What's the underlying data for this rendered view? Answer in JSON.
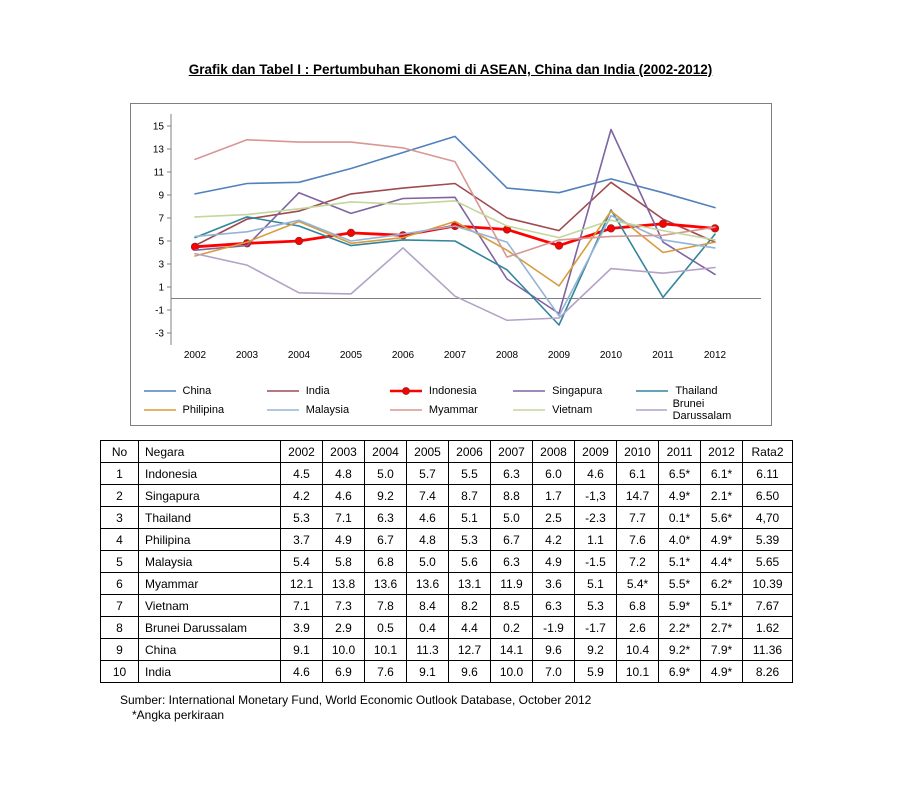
{
  "page": {
    "title": "Grafik dan Tabel I : Pertumbuhan Ekonomi di ASEAN, China dan India (2002-2012)",
    "source": "Sumber: International Monetary Fund, World Economic Outlook Database, October 2012",
    "footnote": "*Angka perkiraan"
  },
  "chart_data": {
    "type": "line",
    "x": [
      2002,
      2003,
      2004,
      2005,
      2006,
      2007,
      2008,
      2009,
      2010,
      2011,
      2012
    ],
    "ylim": [
      -3,
      15
    ],
    "yticks": [
      15,
      13,
      11,
      9,
      7,
      5,
      3,
      1,
      -1,
      -3
    ],
    "grid": false,
    "legend_position": "bottom",
    "legend_rows": [
      [
        "China",
        "India",
        "Indonesia",
        "Singapura",
        "Thailand"
      ],
      [
        "Philipina",
        "Malaysia",
        "Myammar",
        "Vietnam",
        "Brunei Darussalam"
      ]
    ],
    "series": [
      {
        "name": "China",
        "color": "#4F81BD",
        "width": 1.6,
        "values": [
          9.1,
          10.0,
          10.1,
          11.3,
          12.7,
          14.1,
          9.6,
          9.2,
          10.4,
          9.2,
          7.9
        ]
      },
      {
        "name": "India",
        "color": "#9E4B50",
        "width": 1.6,
        "values": [
          4.6,
          6.9,
          7.6,
          9.1,
          9.6,
          10.0,
          7.0,
          5.9,
          10.1,
          6.9,
          4.9
        ]
      },
      {
        "name": "Indonesia",
        "color": "#FF0000",
        "width": 2.8,
        "marker": true,
        "values": [
          4.5,
          4.8,
          5.0,
          5.7,
          5.5,
          6.3,
          6.0,
          4.6,
          6.1,
          6.5,
          6.1
        ]
      },
      {
        "name": "Singapura",
        "color": "#8064A2",
        "width": 1.6,
        "values": [
          4.2,
          4.6,
          9.2,
          7.4,
          8.7,
          8.8,
          1.7,
          -1.3,
          14.7,
          4.9,
          2.1
        ]
      },
      {
        "name": "Thailand",
        "color": "#31859C",
        "width": 1.6,
        "values": [
          5.3,
          7.1,
          6.3,
          4.6,
          5.1,
          5.0,
          2.5,
          -2.3,
          7.7,
          0.1,
          5.6
        ]
      },
      {
        "name": "Philipina",
        "color": "#D89C3C",
        "width": 1.6,
        "values": [
          3.7,
          4.9,
          6.7,
          4.8,
          5.3,
          6.7,
          4.2,
          1.1,
          7.6,
          4.0,
          4.9
        ]
      },
      {
        "name": "Malaysia",
        "color": "#95B3D7",
        "width": 1.6,
        "values": [
          5.4,
          5.8,
          6.8,
          5.0,
          5.6,
          6.3,
          4.9,
          -1.5,
          7.2,
          5.1,
          4.4
        ]
      },
      {
        "name": "Myammar",
        "color": "#D99694",
        "width": 1.6,
        "values": [
          12.1,
          13.8,
          13.6,
          13.6,
          13.1,
          11.9,
          3.6,
          5.1,
          5.4,
          5.5,
          6.2
        ]
      },
      {
        "name": "Vietnam",
        "color": "#C3D69B",
        "width": 1.6,
        "values": [
          7.1,
          7.3,
          7.8,
          8.4,
          8.2,
          8.5,
          6.3,
          5.3,
          6.8,
          5.9,
          5.1
        ]
      },
      {
        "name": "Brunei Darussalam",
        "color": "#B3A2C7",
        "width": 1.6,
        "values": [
          3.9,
          2.9,
          0.5,
          0.4,
          4.4,
          0.2,
          -1.9,
          -1.7,
          2.6,
          2.2,
          2.7
        ]
      }
    ]
  },
  "table": {
    "headers": [
      "No",
      "Negara",
      "2002",
      "2003",
      "2004",
      "2005",
      "2006",
      "2007",
      "2008",
      "2009",
      "2010",
      "2011",
      "2012",
      "Rata2"
    ],
    "rows": [
      {
        "no": "1",
        "negara": "Indonesia",
        "values": [
          "4.5",
          "4.8",
          "5.0",
          "5.7",
          "5.5",
          "6.3",
          "6.0",
          "4.6",
          "6.1",
          "6.5*",
          "6.1*",
          "6.11"
        ]
      },
      {
        "no": "2",
        "negara": "Singapura",
        "values": [
          "4.2",
          "4.6",
          "9.2",
          "7.4",
          "8.7",
          "8.8",
          "1.7",
          "-1,3",
          "14.7",
          "4.9*",
          "2.1*",
          "6.50"
        ]
      },
      {
        "no": "3",
        "negara": "Thailand",
        "values": [
          "5.3",
          "7.1",
          "6.3",
          "4.6",
          "5.1",
          "5.0",
          "2.5",
          "-2.3",
          "7.7",
          "0.1*",
          "5.6*",
          "4,70"
        ]
      },
      {
        "no": "4",
        "negara": "Philipina",
        "values": [
          "3.7",
          "4.9",
          "6.7",
          "4.8",
          "5.3",
          "6.7",
          "4.2",
          "1.1",
          "7.6",
          "4.0*",
          "4.9*",
          "5.39"
        ]
      },
      {
        "no": "5",
        "negara": "Malaysia",
        "values": [
          "5.4",
          "5.8",
          "6.8",
          "5.0",
          "5.6",
          "6.3",
          "4.9",
          "-1.5",
          "7.2",
          "5.1*",
          "4.4*",
          "5.65"
        ]
      },
      {
        "no": "6",
        "negara": "Myammar",
        "values": [
          "12.1",
          "13.8",
          "13.6",
          "13.6",
          "13.1",
          "11.9",
          "3.6",
          "5.1",
          "5.4*",
          "5.5*",
          "6.2*",
          "10.39"
        ]
      },
      {
        "no": "7",
        "negara": "Vietnam",
        "values": [
          "7.1",
          "7.3",
          "7.8",
          "8.4",
          "8.2",
          "8.5",
          "6.3",
          "5.3",
          "6.8",
          "5.9*",
          "5.1*",
          "7.67"
        ]
      },
      {
        "no": "8",
        "negara": "Brunei Darussalam",
        "values": [
          "3.9",
          "2.9",
          "0.5",
          "0.4",
          "4.4",
          "0.2",
          "-1.9",
          "-1.7",
          "2.6",
          "2.2*",
          "2.7*",
          "1.62"
        ]
      },
      {
        "no": "9",
        "negara": "China",
        "values": [
          "9.1",
          "10.0",
          "10.1",
          "11.3",
          "12.7",
          "14.1",
          "9.6",
          "9.2",
          "10.4",
          "9.2*",
          "7.9*",
          "11.36"
        ]
      },
      {
        "no": "10",
        "negara": "India",
        "values": [
          "4.6",
          "6.9",
          "7.6",
          "9.1",
          "9.6",
          "10.0",
          "7.0",
          "5.9",
          "10.1",
          "6.9*",
          "4.9*",
          "8.26"
        ]
      }
    ]
  }
}
